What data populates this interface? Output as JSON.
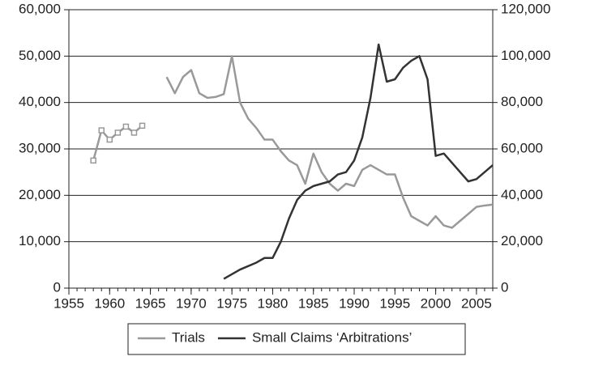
{
  "chart_data": {
    "type": "line",
    "xlim": [
      1955,
      2007
    ],
    "xticks": [
      1955,
      1960,
      1965,
      1970,
      1975,
      1980,
      1985,
      1990,
      1995,
      2000,
      2005
    ],
    "ylim": [
      0,
      60000
    ],
    "yticks": [
      0,
      {
        "value": 10000,
        "label": "10,000"
      },
      {
        "value": 20000,
        "label": "20,000"
      },
      {
        "value": 30000,
        "label": "30,000"
      },
      {
        "value": 40000,
        "label": "40,000"
      },
      {
        "value": 50000,
        "label": "50,000"
      },
      {
        "value": 60000,
        "label": "60,000"
      }
    ],
    "y2lim": [
      0,
      120000
    ],
    "y2ticks": [
      0,
      {
        "value": 20000,
        "label": "20,000"
      },
      {
        "value": 40000,
        "label": "40,000"
      },
      {
        "value": 60000,
        "label": "60,000"
      },
      {
        "value": 80000,
        "label": "80,000"
      },
      {
        "value": 100000,
        "label": "100,000"
      },
      {
        "value": 120000,
        "label": "120,000"
      }
    ],
    "grid": true,
    "legend": "bottom",
    "series": [
      {
        "name": "Trials",
        "color": "#999999",
        "x": [
          1958,
          1959,
          1960,
          1961,
          1962,
          1963,
          1964,
          1965,
          1966,
          1967,
          1968,
          1969,
          1970,
          1971,
          1972,
          1973,
          1974,
          1975,
          1976,
          1977,
          1978,
          1979,
          1980,
          1981,
          1982,
          1983,
          1984,
          1985,
          1986,
          1987,
          1988,
          1989,
          1990,
          1991,
          1992,
          1993,
          1994,
          1995,
          1996,
          1997,
          1998,
          1999,
          2000,
          2001,
          2002,
          2003,
          2004,
          2005,
          2006,
          2007
        ],
        "values": [
          27500,
          34000,
          32000,
          33500,
          34800,
          33500,
          35000,
          null,
          null,
          45500,
          42000,
          45500,
          47000,
          42000,
          41000,
          41200,
          41800,
          50000,
          40000,
          36500,
          34500,
          32000,
          32000,
          29500,
          27500,
          26500,
          22500,
          29000,
          25000,
          22500,
          21000,
          22500,
          22000,
          25500,
          26500,
          25500,
          24500,
          24500,
          19500,
          15500,
          14500,
          13500,
          15500,
          13500,
          13000,
          14500,
          16000,
          17500,
          17800,
          18000
        ]
      },
      {
        "name": "Small Claims ‘Arbitrations’",
        "color": "#333333",
        "axis": "y2",
        "x": [
          1974,
          1976,
          1978,
          1979,
          1980,
          1981,
          1982,
          1983,
          1984,
          1985,
          1986,
          1987,
          1988,
          1989,
          1990,
          1991,
          1992,
          1993,
          1994,
          1995,
          1996,
          1997,
          1998,
          1999,
          2000,
          2001,
          2002,
          2003,
          2004,
          2005,
          2006,
          2007
        ],
        "values": [
          4000,
          8000,
          11000,
          13000,
          13000,
          20000,
          30000,
          38000,
          42000,
          44000,
          45000,
          46000,
          49000,
          50000,
          55000,
          65000,
          82000,
          105000,
          89000,
          90000,
          95000,
          98000,
          100000,
          90000,
          57000,
          58000,
          54000,
          50000,
          46000,
          47000,
          50000,
          53000
        ]
      }
    ]
  }
}
